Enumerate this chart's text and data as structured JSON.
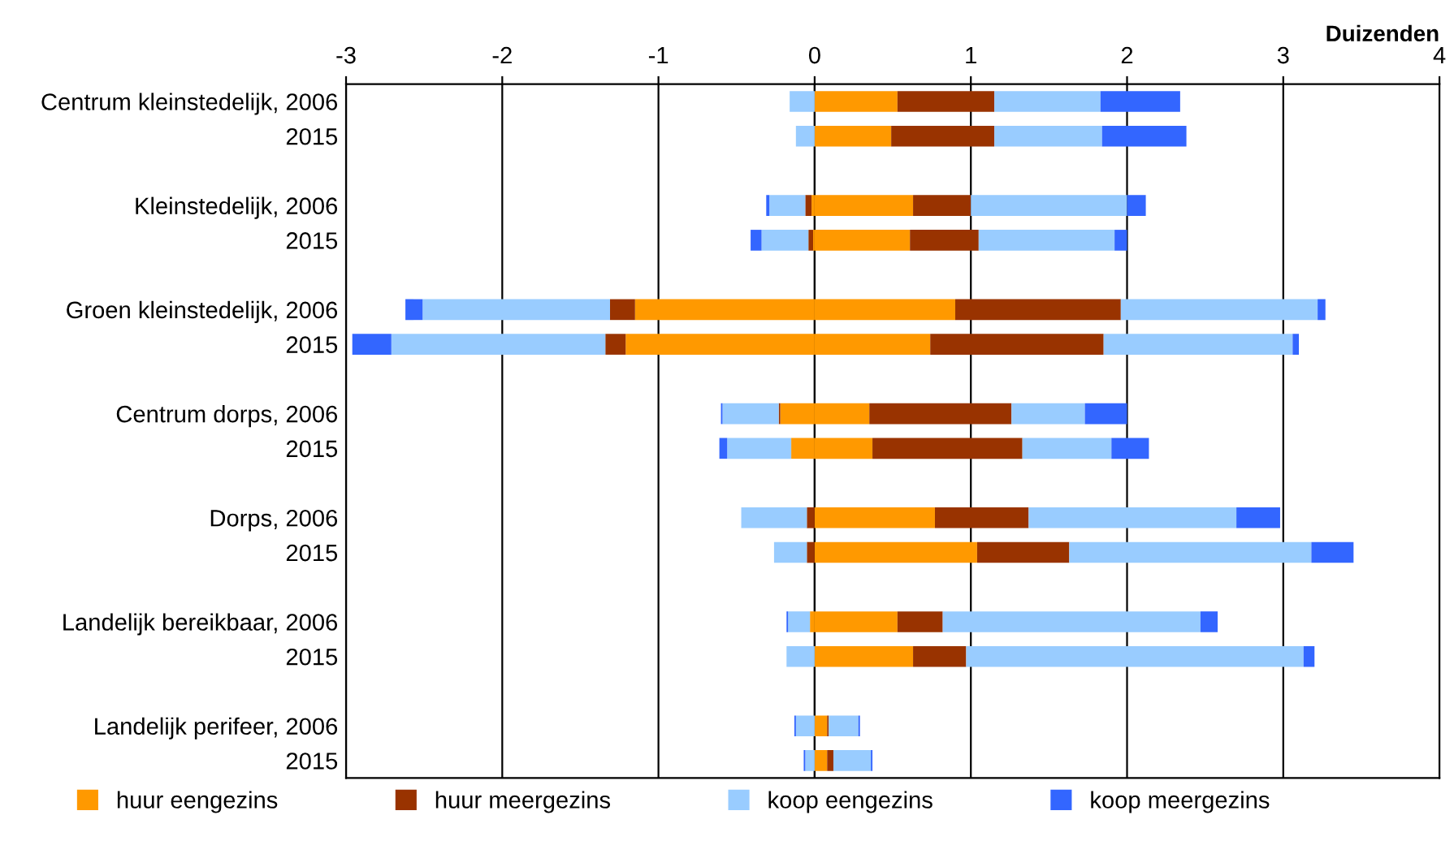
{
  "chart_data": {
    "type": "bar",
    "orientation": "horizontal",
    "stacked": true,
    "xlabel": "Duizenden",
    "categories": [
      "Centrum kleinstedelijk, 2006",
      "2015",
      null,
      "Kleinstedelijk, 2006",
      "2015",
      null,
      "Groen kleinstedelijk, 2006",
      "2015",
      null,
      "Centrum dorps, 2006",
      "2015",
      null,
      "Dorps, 2006",
      "2015",
      null,
      "Landelijk bereikbaar, 2006",
      "2015",
      null,
      "Landelijk perifeer, 2006",
      "2015"
    ],
    "series": [
      {
        "name": "huur eengezins",
        "color": "#ff9900",
        "values": [
          0.53,
          0.49,
          null,
          0.63,
          0.61,
          null,
          0.9,
          0.74,
          null,
          0.35,
          0.37,
          null,
          0.77,
          1.04,
          null,
          0.53,
          0.63,
          null,
          0.08,
          0.08
        ]
      },
      {
        "name": "huur meergezins",
        "color": "#993300",
        "values": [
          0.62,
          0.66,
          null,
          0.37,
          0.44,
          null,
          1.06,
          1.11,
          null,
          0.91,
          0.96,
          null,
          0.6,
          0.59,
          null,
          0.29,
          0.34,
          null,
          0.01,
          0.04
        ]
      },
      {
        "name": "koop eengezins",
        "color": "#99ccff",
        "values": [
          0.68,
          0.69,
          null,
          1.0,
          0.87,
          null,
          1.26,
          1.21,
          null,
          0.47,
          0.57,
          null,
          1.33,
          1.55,
          null,
          1.65,
          2.16,
          null,
          0.19,
          0.24
        ]
      },
      {
        "name": "koop meergezins",
        "color": "#3366ff",
        "values": [
          0.51,
          0.54,
          null,
          0.12,
          0.08,
          null,
          0.05,
          0.04,
          null,
          0.27,
          0.24,
          null,
          0.28,
          0.27,
          null,
          0.11,
          0.07,
          null,
          0.01,
          0.01
        ]
      },
      {
        "color": "#ff9900",
        "values": [
          0,
          0,
          null,
          -0.02,
          -0.01,
          null,
          -1.15,
          -1.21,
          null,
          -0.22,
          -0.15,
          null,
          0,
          0,
          null,
          -0.03,
          0,
          null,
          0,
          0
        ]
      },
      {
        "color": "#993300",
        "values": [
          0,
          0,
          null,
          -0.04,
          -0.03,
          null,
          -0.16,
          -0.13,
          null,
          -0.01,
          0,
          null,
          -0.05,
          -0.05,
          null,
          0,
          0,
          null,
          0,
          0
        ]
      },
      {
        "color": "#99ccff",
        "values": [
          -0.16,
          -0.12,
          null,
          -0.23,
          -0.3,
          null,
          -1.2,
          -1.37,
          null,
          -0.36,
          -0.41,
          null,
          -0.42,
          -0.21,
          null,
          -0.14,
          -0.18,
          null,
          -0.12,
          -0.06
        ]
      },
      {
        "color": "#3366ff",
        "values": [
          0,
          0,
          null,
          -0.02,
          -0.07,
          null,
          -0.11,
          -0.25,
          null,
          -0.01,
          -0.05,
          null,
          0,
          0,
          null,
          -0.01,
          0,
          null,
          -0.01,
          -0.01
        ]
      }
    ],
    "xlim": [
      -3,
      4
    ],
    "xticks": [
      -3,
      -2,
      -1,
      0,
      1,
      2,
      3,
      4
    ],
    "grid": "x",
    "legend": "bottom"
  }
}
